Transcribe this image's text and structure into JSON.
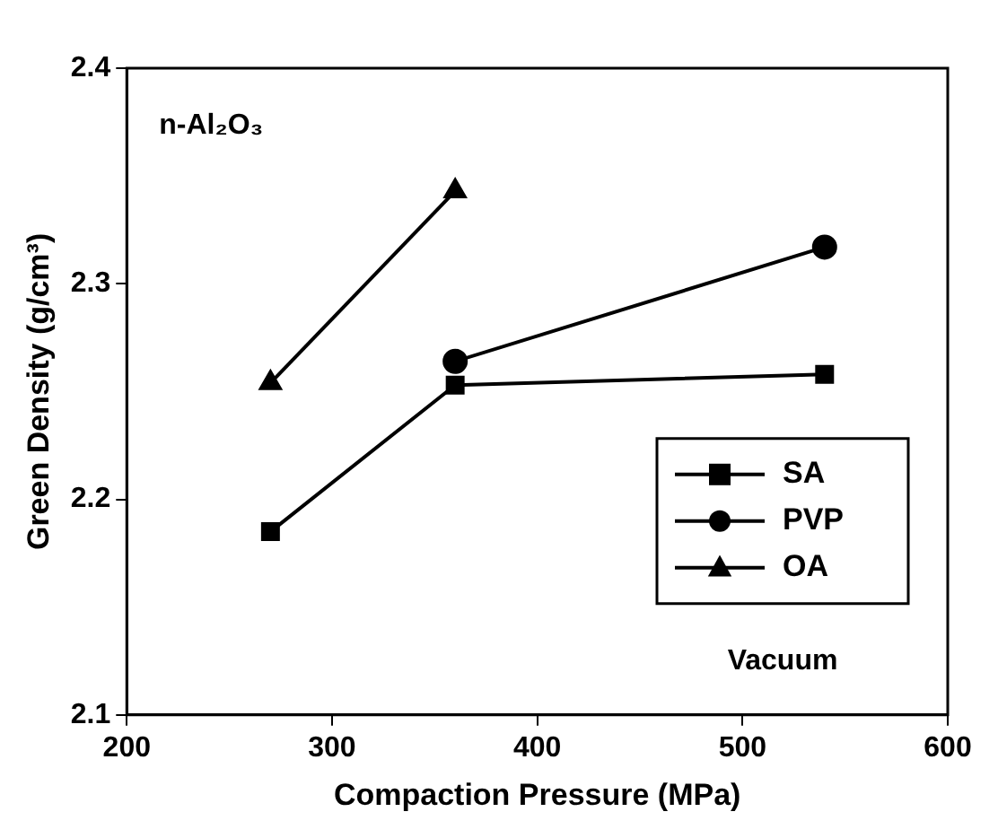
{
  "chart_data": {
    "type": "line",
    "xlabel": "Compaction Pressure (MPa)",
    "ylabel": "Green Density (g/cm³)",
    "xlim": [
      200,
      600
    ],
    "xticks": [
      200,
      300,
      400,
      500,
      600
    ],
    "ylim": [
      2.1,
      2.4
    ],
    "yticks": [
      2.1,
      2.2,
      2.3,
      2.4
    ],
    "grid": false,
    "legend": "bottom right",
    "annotations": [
      "n-Al₂O₃",
      "Vacuum"
    ],
    "series": [
      {
        "name": "SA",
        "color": "#000000",
        "marker": "square",
        "x": [
          270,
          360,
          540
        ],
        "values": [
          2.185,
          2.253,
          2.258
        ]
      },
      {
        "name": "PVP",
        "color": "#000000",
        "marker": "circle",
        "x": [
          360,
          540
        ],
        "values": [
          2.264,
          2.317
        ]
      },
      {
        "name": "OA",
        "color": "#000000",
        "marker": "triangle",
        "x": [
          270,
          360
        ],
        "values": [
          2.254,
          2.343
        ]
      }
    ]
  }
}
